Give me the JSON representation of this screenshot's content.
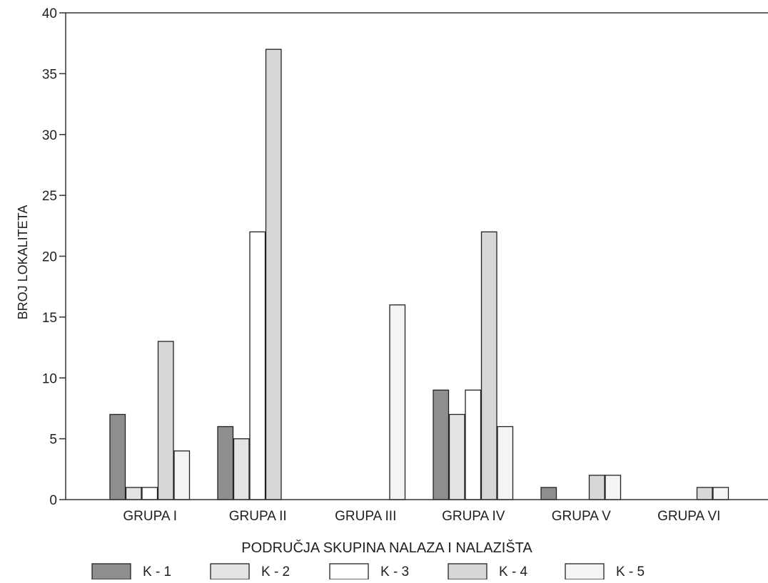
{
  "chart_data": {
    "type": "bar",
    "title": "",
    "xlabel": "PODRUČJA SKUPINA NALAZA I NALAZIŠTA",
    "ylabel": "BROJ LOKALITETA",
    "ylim": [
      0,
      40
    ],
    "yticks": [
      0,
      5,
      10,
      15,
      20,
      25,
      30,
      35,
      40
    ],
    "grid": false,
    "legend_position": "bottom",
    "categories": [
      "GRUPA I",
      "GRUPA II",
      "GRUPA III",
      "GRUPA IV",
      "GRUPA V",
      "GRUPA VI"
    ],
    "series": [
      {
        "name": "K - 1",
        "color": "#8e8e8e",
        "values": [
          7,
          6,
          0,
          9,
          1,
          0
        ]
      },
      {
        "name": "K - 2",
        "color": "#e3e3e3",
        "values": [
          1,
          5,
          0,
          7,
          0,
          0
        ]
      },
      {
        "name": "K - 3",
        "color": "#ffffff",
        "values": [
          1,
          22,
          0,
          9,
          0,
          0
        ]
      },
      {
        "name": "K - 4",
        "color": "#d7d7d7",
        "values": [
          13,
          37,
          0,
          22,
          2,
          1
        ]
      },
      {
        "name": "K - 5",
        "color": "#f4f4f4",
        "values": [
          4,
          0,
          16,
          6,
          2,
          1
        ]
      }
    ]
  }
}
